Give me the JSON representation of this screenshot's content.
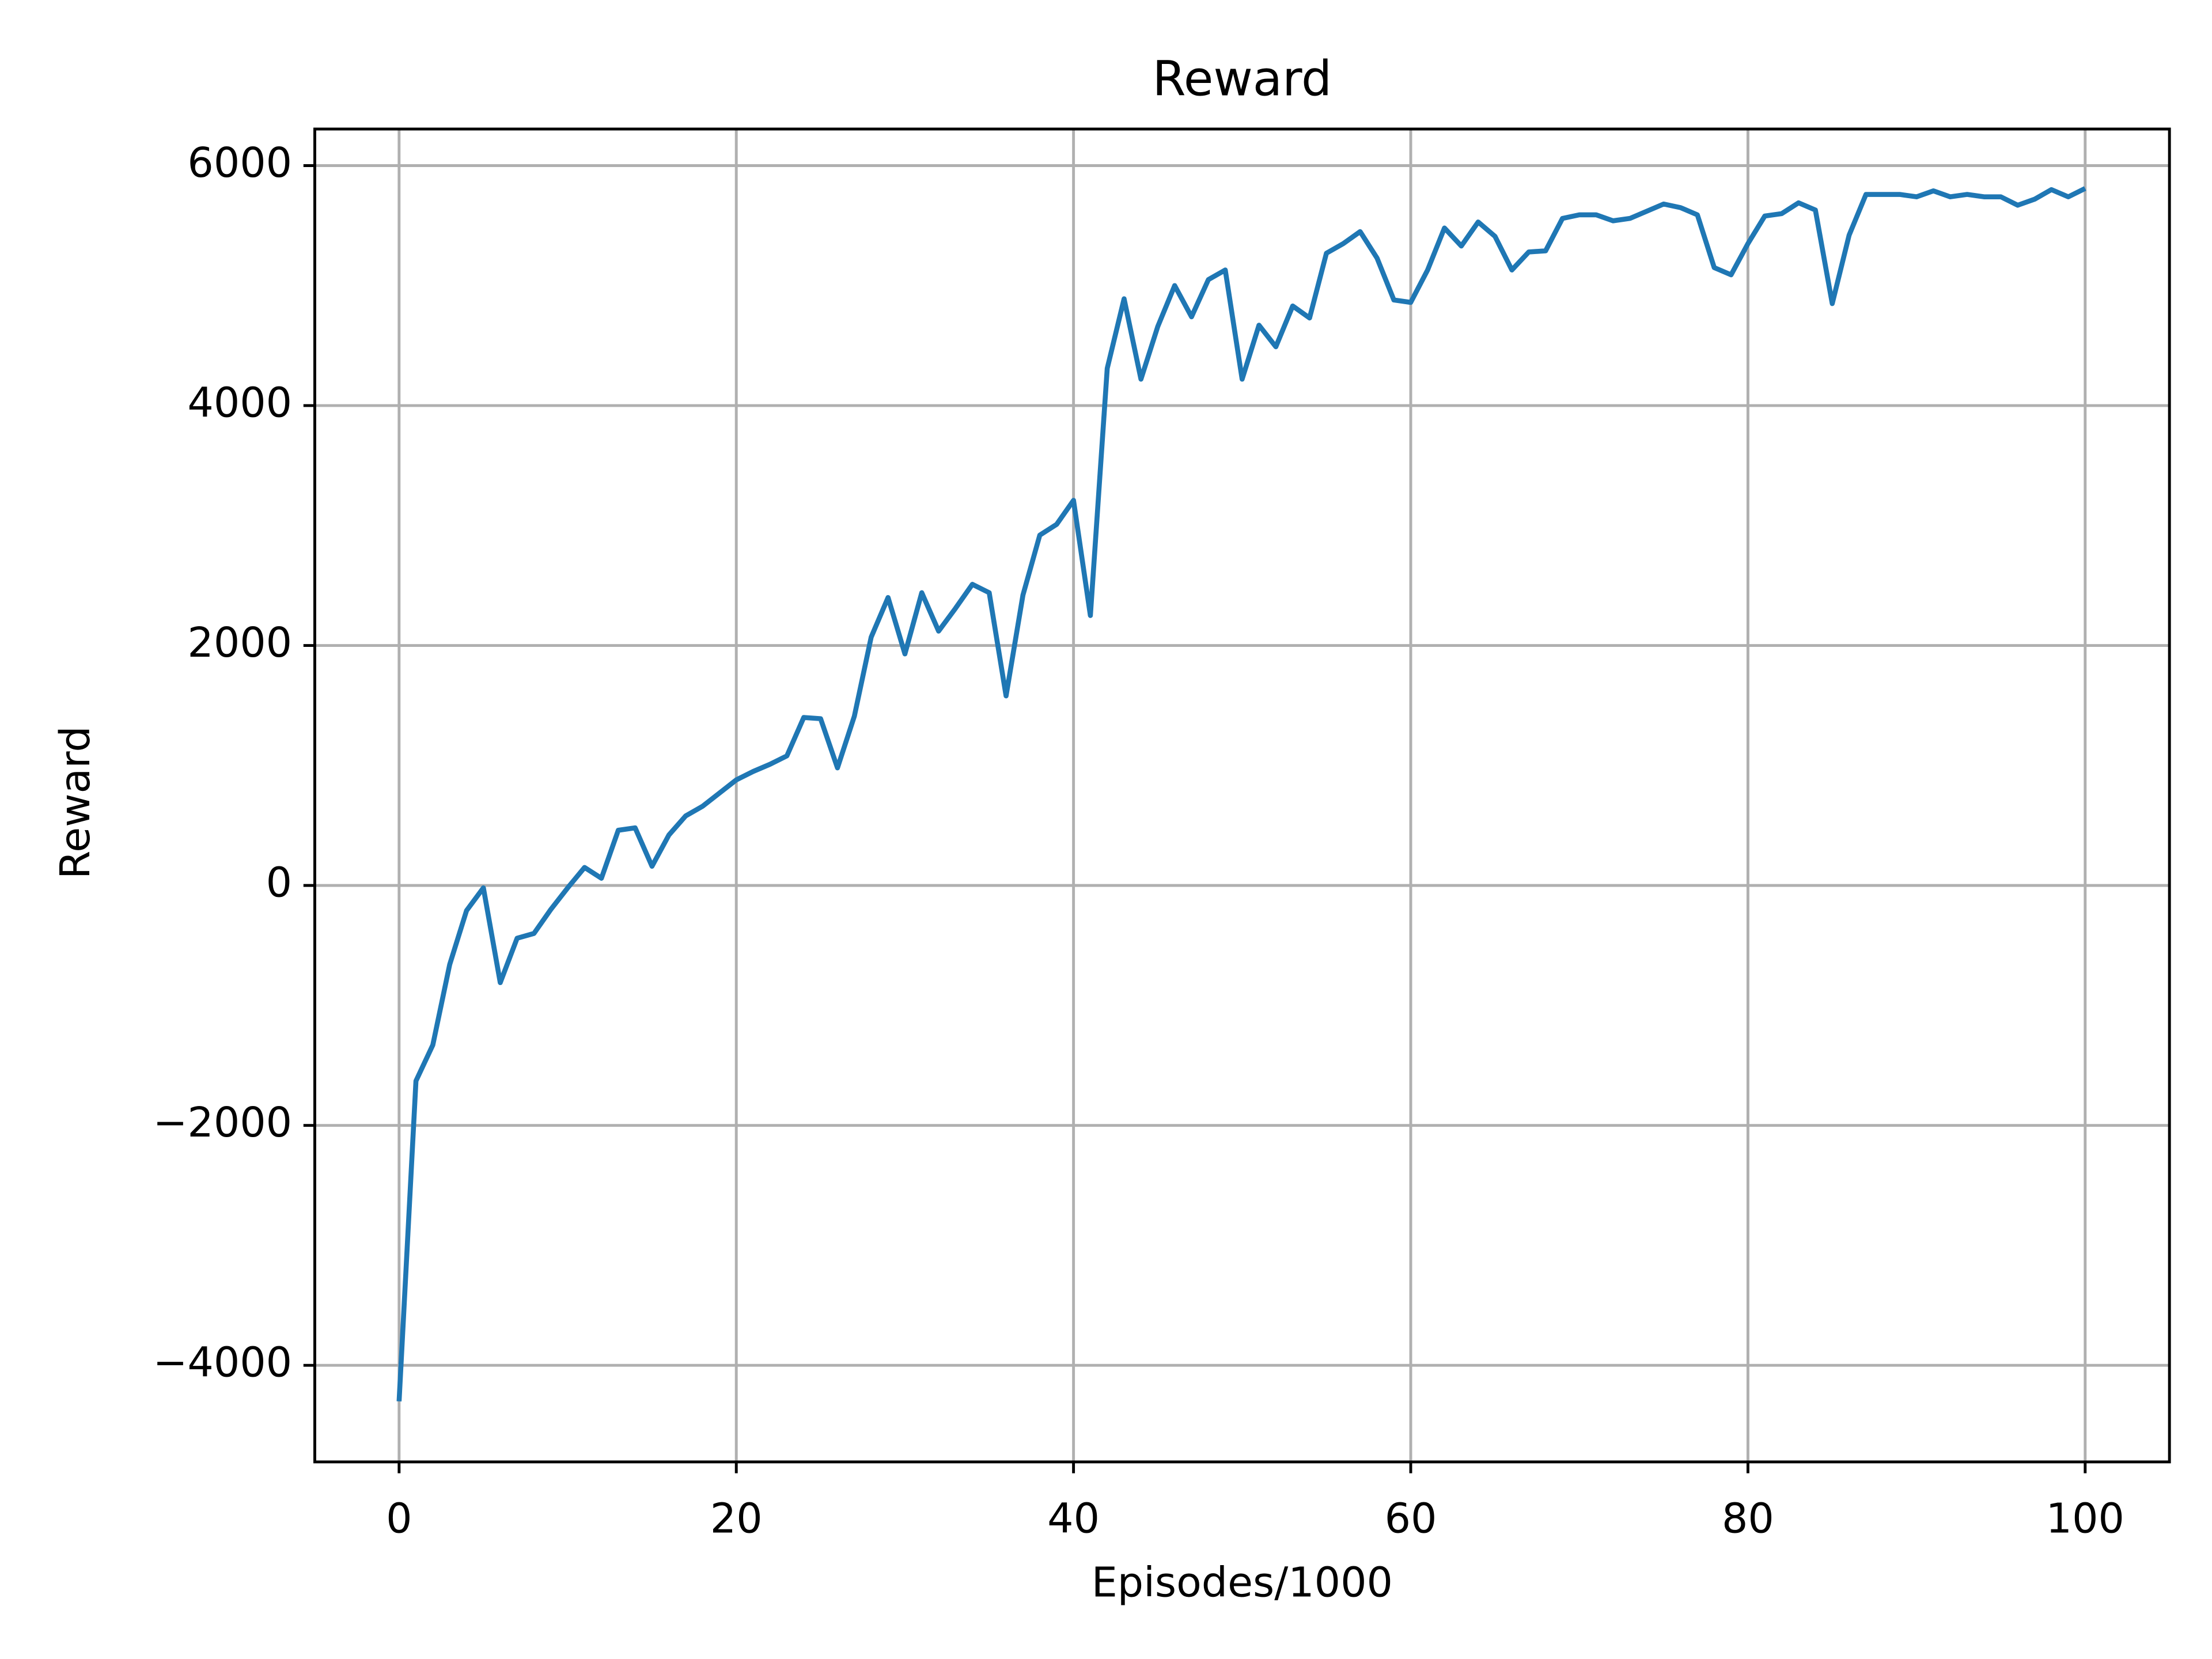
{
  "chart_data": {
    "type": "line",
    "title": "Reward",
    "xlabel": "Episodes/1000",
    "ylabel": "Reward",
    "x": [
      0,
      1,
      2,
      3,
      4,
      5,
      6,
      7,
      8,
      9,
      10,
      11,
      12,
      13,
      14,
      15,
      16,
      17,
      18,
      19,
      20,
      21,
      22,
      23,
      24,
      25,
      26,
      27,
      28,
      29,
      30,
      31,
      32,
      33,
      34,
      35,
      36,
      37,
      38,
      39,
      40,
      41,
      42,
      43,
      44,
      45,
      46,
      47,
      48,
      49,
      50,
      51,
      52,
      53,
      54,
      55,
      56,
      57,
      58,
      59,
      60,
      61,
      62,
      63,
      64,
      65,
      66,
      67,
      68,
      69,
      70,
      71,
      72,
      73,
      74,
      75,
      76,
      77,
      78,
      79,
      80,
      81,
      82,
      83,
      84,
      85,
      86,
      87,
      88,
      89,
      90,
      91,
      92,
      93,
      94,
      95,
      96,
      97,
      98,
      99,
      100
    ],
    "series": [
      {
        "name": "Reward",
        "color": "#1f77b4",
        "values": [
          -4300,
          -1630,
          -1330,
          -660,
          -210,
          -20,
          -810,
          -440,
          -400,
          -200,
          -20,
          150,
          60,
          460,
          480,
          160,
          420,
          580,
          660,
          770,
          880,
          950,
          1010,
          1080,
          1400,
          1390,
          980,
          1410,
          2070,
          2400,
          1930,
          2440,
          2120,
          2310,
          2510,
          2440,
          1580,
          2420,
          2920,
          3010,
          3210,
          2250,
          4310,
          4890,
          4220,
          4660,
          5000,
          4740,
          5050,
          5130,
          4220,
          4670,
          4490,
          4830,
          4730,
          5270,
          5350,
          5450,
          5230,
          4880,
          4860,
          5130,
          5480,
          5330,
          5530,
          5410,
          5130,
          5280,
          5290,
          5560,
          5590,
          5590,
          5540,
          5560,
          5620,
          5680,
          5650,
          5590,
          5150,
          5090,
          5350,
          5580,
          5600,
          5690,
          5630,
          4850,
          5420,
          5760,
          5760,
          5760,
          5740,
          5790,
          5740,
          5760,
          5740,
          5740,
          5670,
          5720,
          5800,
          5740,
          5810
        ]
      }
    ],
    "xlim": [
      -5,
      105
    ],
    "xticks": [
      0,
      20,
      40,
      60,
      80,
      100
    ],
    "ylim": [
      -4805,
      6305
    ],
    "yticks": [
      {
        "value": -4000,
        "label": "−4000"
      },
      {
        "value": -2000,
        "label": "−2000"
      },
      0,
      2000,
      4000,
      6000
    ],
    "grid": true
  }
}
